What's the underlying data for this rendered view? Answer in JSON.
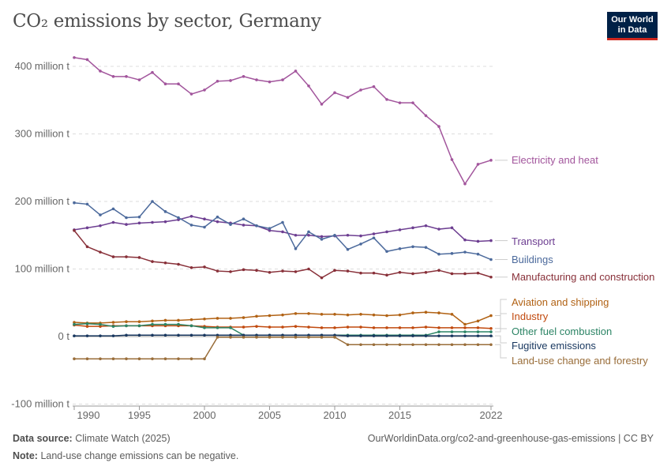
{
  "title": "CO₂ emissions by sector, Germany",
  "logo": "Our World in Data",
  "footer": {
    "source_label": "Data source:",
    "source": "Climate Watch (2025)",
    "url": "OurWorldinData.org/co2-and-greenhouse-gas-emissions | CC BY",
    "note_label": "Note:",
    "note": "Land-use change emissions can be negative."
  },
  "chart_data": {
    "type": "line",
    "title": "CO₂ emissions by sector, Germany",
    "xlabel": "",
    "ylabel": "",
    "x": [
      1990,
      1991,
      1992,
      1993,
      1994,
      1995,
      1996,
      1997,
      1998,
      1999,
      2000,
      2001,
      2002,
      2003,
      2004,
      2005,
      2006,
      2007,
      2008,
      2009,
      2010,
      2011,
      2012,
      2013,
      2014,
      2015,
      2016,
      2017,
      2018,
      2019,
      2020,
      2021,
      2022
    ],
    "xticks": [
      "1990",
      "1995",
      "2000",
      "2005",
      "2010",
      "2015",
      "2022"
    ],
    "yticks": [
      "-100 million t",
      "0 t",
      "100 million t",
      "200 million t",
      "300 million t",
      "400 million t"
    ],
    "ylim": [
      -100,
      420
    ],
    "grid": "horizontal dashed",
    "legend": "right, inline labels",
    "series": [
      {
        "name": "Electricity and heat",
        "color": "#a2559c",
        "values": [
          413,
          410,
          393,
          385,
          385,
          380,
          391,
          374,
          374,
          359,
          365,
          378,
          379,
          385,
          380,
          377,
          380,
          393,
          371,
          344,
          361,
          354,
          365,
          370,
          351,
          346,
          346,
          327,
          311,
          262,
          226,
          255,
          261
        ]
      },
      {
        "name": "Transport",
        "color": "#6d3e91",
        "values": [
          158,
          161,
          164,
          169,
          166,
          168,
          169,
          170,
          173,
          178,
          174,
          170,
          168,
          165,
          164,
          157,
          155,
          150,
          150,
          148,
          149,
          150,
          149,
          152,
          155,
          158,
          161,
          164,
          159,
          161,
          143,
          141,
          142
        ]
      },
      {
        "name": "Buildings",
        "color": "#4c6a9c",
        "values": [
          198,
          196,
          180,
          189,
          176,
          177,
          200,
          185,
          176,
          165,
          162,
          177,
          166,
          174,
          164,
          160,
          169,
          130,
          155,
          144,
          150,
          129,
          137,
          146,
          126,
          130,
          133,
          132,
          122,
          123,
          125,
          122,
          114
        ]
      },
      {
        "name": "Manufacturing and construction",
        "color": "#883039",
        "values": [
          157,
          133,
          125,
          118,
          118,
          117,
          111,
          109,
          107,
          102,
          103,
          97,
          96,
          99,
          98,
          95,
          97,
          96,
          100,
          87,
          98,
          97,
          94,
          94,
          91,
          95,
          93,
          95,
          98,
          93,
          93,
          94,
          88
        ]
      },
      {
        "name": "Aviation and shipping",
        "color": "#b16214",
        "values": [
          21,
          20,
          20,
          21,
          22,
          22,
          23,
          24,
          24,
          25,
          26,
          27,
          27,
          28,
          30,
          31,
          32,
          34,
          34,
          33,
          33,
          32,
          33,
          32,
          31,
          32,
          35,
          36,
          35,
          33,
          18,
          23,
          31
        ]
      },
      {
        "name": "Industry",
        "color": "#c14a0f",
        "values": [
          17,
          15,
          15,
          16,
          16,
          16,
          16,
          16,
          16,
          16,
          15,
          14,
          14,
          14,
          15,
          14,
          14,
          15,
          14,
          13,
          13,
          14,
          14,
          13,
          13,
          13,
          13,
          14,
          13,
          13,
          13,
          13,
          12
        ]
      },
      {
        "name": "Other fuel combustion",
        "color": "#2c8465",
        "values": [
          18,
          19,
          18,
          15,
          16,
          16,
          18,
          18,
          18,
          16,
          13,
          13,
          13,
          2,
          2,
          2,
          2,
          2,
          2,
          2,
          2,
          2,
          2,
          2,
          2,
          2,
          2,
          2,
          7,
          7,
          7,
          7,
          7
        ]
      },
      {
        "name": "Fugitive emissions",
        "color": "#18375f",
        "values": [
          1,
          1,
          1,
          1,
          2,
          2,
          2,
          2,
          2,
          2,
          2,
          2,
          2,
          2,
          2,
          2,
          2,
          2,
          2,
          2,
          2,
          1,
          1,
          1,
          1,
          1,
          1,
          1,
          1,
          1,
          1,
          1,
          1
        ]
      },
      {
        "name": "Land-use change and forestry",
        "color": "#996d39",
        "values": [
          -33,
          -33,
          -33,
          -33,
          -33,
          -33,
          -33,
          -33,
          -33,
          -33,
          -33,
          -1,
          -1,
          -1,
          -1,
          -1,
          -1,
          -1,
          -1,
          -1,
          -1,
          -12,
          -12,
          -12,
          -12,
          -12,
          -12,
          -12,
          -12,
          -12,
          -12,
          -12,
          -12
        ]
      }
    ]
  }
}
